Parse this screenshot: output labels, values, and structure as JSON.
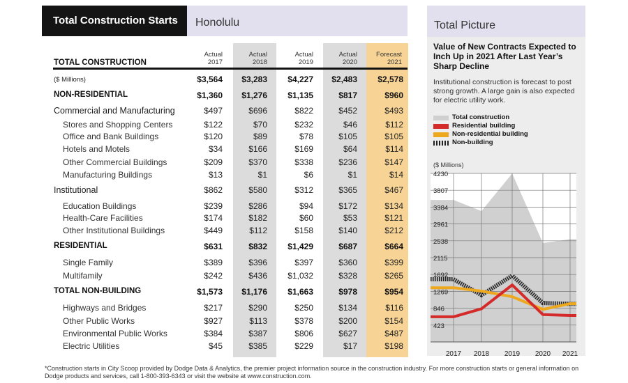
{
  "left": {
    "title": "Total Construction Starts",
    "city": "Honolulu",
    "headers": [
      {
        "line1": "Actual",
        "line2": "2017"
      },
      {
        "line1": "Actual",
        "line2": "2018"
      },
      {
        "line1": "Actual",
        "line2": "2019"
      },
      {
        "line1": "Actual",
        "line2": "2020"
      },
      {
        "line1": "Forecast",
        "line2": "2021"
      }
    ],
    "total_label": "TOTAL CONSTRUCTION",
    "rows": [
      {
        "label": "($ Millions)",
        "values": [
          "$3,564",
          "$3,283",
          "$4,227",
          "$2,483",
          "$2,578"
        ]
      },
      {
        "label": "NON-RESIDENTIAL",
        "values": [
          "$1,360",
          "$1,276",
          "$1,135",
          "$817",
          "$960"
        ]
      },
      {
        "label": "Commercial and Manufacturing",
        "values": [
          "$497",
          "$696",
          "$822",
          "$452",
          "$493"
        ]
      },
      {
        "label": "Stores and Shopping Centers",
        "values": [
          "$122",
          "$70",
          "$232",
          "$46",
          "$112"
        ]
      },
      {
        "label": "Office and Bank Buildings",
        "values": [
          "$120",
          "$89",
          "$78",
          "$105",
          "$105"
        ]
      },
      {
        "label": "Hotels and Motels",
        "values": [
          "$34",
          "$166",
          "$169",
          "$64",
          "$114"
        ]
      },
      {
        "label": "Other Commercial Buildings",
        "values": [
          "$209",
          "$370",
          "$338",
          "$236",
          "$147"
        ]
      },
      {
        "label": "Manufacturing Buildings",
        "values": [
          "$13",
          "$1",
          "$6",
          "$1",
          "$14"
        ]
      },
      {
        "label": "Institutional",
        "values": [
          "$862",
          "$580",
          "$312",
          "$365",
          "$467"
        ]
      },
      {
        "label": "Education Buildings",
        "values": [
          "$239",
          "$286",
          "$94",
          "$172",
          "$134"
        ]
      },
      {
        "label": "Health-Care Facilities",
        "values": [
          "$174",
          "$182",
          "$60",
          "$53",
          "$121"
        ]
      },
      {
        "label": "Other Institutional Buildings",
        "values": [
          "$449",
          "$112",
          "$158",
          "$140",
          "$212"
        ]
      },
      {
        "label": "RESIDENTIAL",
        "values": [
          "$631",
          "$832",
          "$1,429",
          "$687",
          "$664"
        ]
      },
      {
        "label": "Single Family",
        "values": [
          "$389",
          "$396",
          "$397",
          "$360",
          "$399"
        ]
      },
      {
        "label": "Multifamily",
        "values": [
          "$242",
          "$436",
          "$1,032",
          "$328",
          "$265"
        ]
      },
      {
        "label": "TOTAL NON-BUILDING",
        "values": [
          "$1,573",
          "$1,176",
          "$1,663",
          "$978",
          "$954"
        ]
      },
      {
        "label": "Highways and Bridges",
        "values": [
          "$217",
          "$290",
          "$250",
          "$134",
          "$116"
        ]
      },
      {
        "label": "Other Public Works",
        "values": [
          "$927",
          "$113",
          "$378",
          "$200",
          "$154"
        ]
      },
      {
        "label": "Environmental Public Works",
        "values": [
          "$384",
          "$387",
          "$806",
          "$627",
          "$487"
        ]
      },
      {
        "label": "Electric Utilities",
        "values": [
          "$45",
          "$385",
          "$229",
          "$17",
          "$198"
        ]
      }
    ]
  },
  "footnote": "*Construction starts in City Scoop provided by Dodge Data & Analytics, the premier project information source in the construction industry. For more construction starts or general information on Dodge products and services, call 1-800-393-6343 or visit the website at www.construction.com.",
  "right": {
    "title": "Total Picture",
    "heading": "Value of New Contracts Expected to Inch Up in 2021 After Last Year’s Sharp Decline",
    "description": "Institutional construction is forecast to post strong growth. A large gain is also expected for electric utility work.",
    "y_unit": "($ Millions)"
  },
  "colors": {
    "total": "#d0d0d0",
    "residential": "#d42a2a",
    "nonresidential": "#eea81e",
    "nonbuilding": "#222222",
    "gray_column": "#dcdcdc",
    "forecast_column": "#f7d496"
  },
  "chart_data": {
    "type": "area",
    "categories": [
      "2017",
      "2018",
      "2019",
      "2020",
      "2021"
    ],
    "y_ticks": [
      "4230",
      "3807",
      "3384",
      "2961",
      "2538",
      "2115",
      "1692",
      "1269",
      "846",
      "423"
    ],
    "ylim": [
      0,
      4230
    ],
    "grid": true,
    "series": [
      {
        "name": "Total construction",
        "style": "area",
        "values": [
          3564,
          3283,
          4227,
          2483,
          2578
        ]
      },
      {
        "name": "Residential building",
        "style": "line",
        "values": [
          631,
          832,
          1429,
          687,
          664
        ]
      },
      {
        "name": "Non-residential building",
        "style": "line",
        "values": [
          1360,
          1276,
          1135,
          817,
          960
        ]
      },
      {
        "name": "Non-building",
        "style": "hatched-line",
        "values": [
          1573,
          1176,
          1663,
          978,
          954
        ]
      }
    ]
  }
}
